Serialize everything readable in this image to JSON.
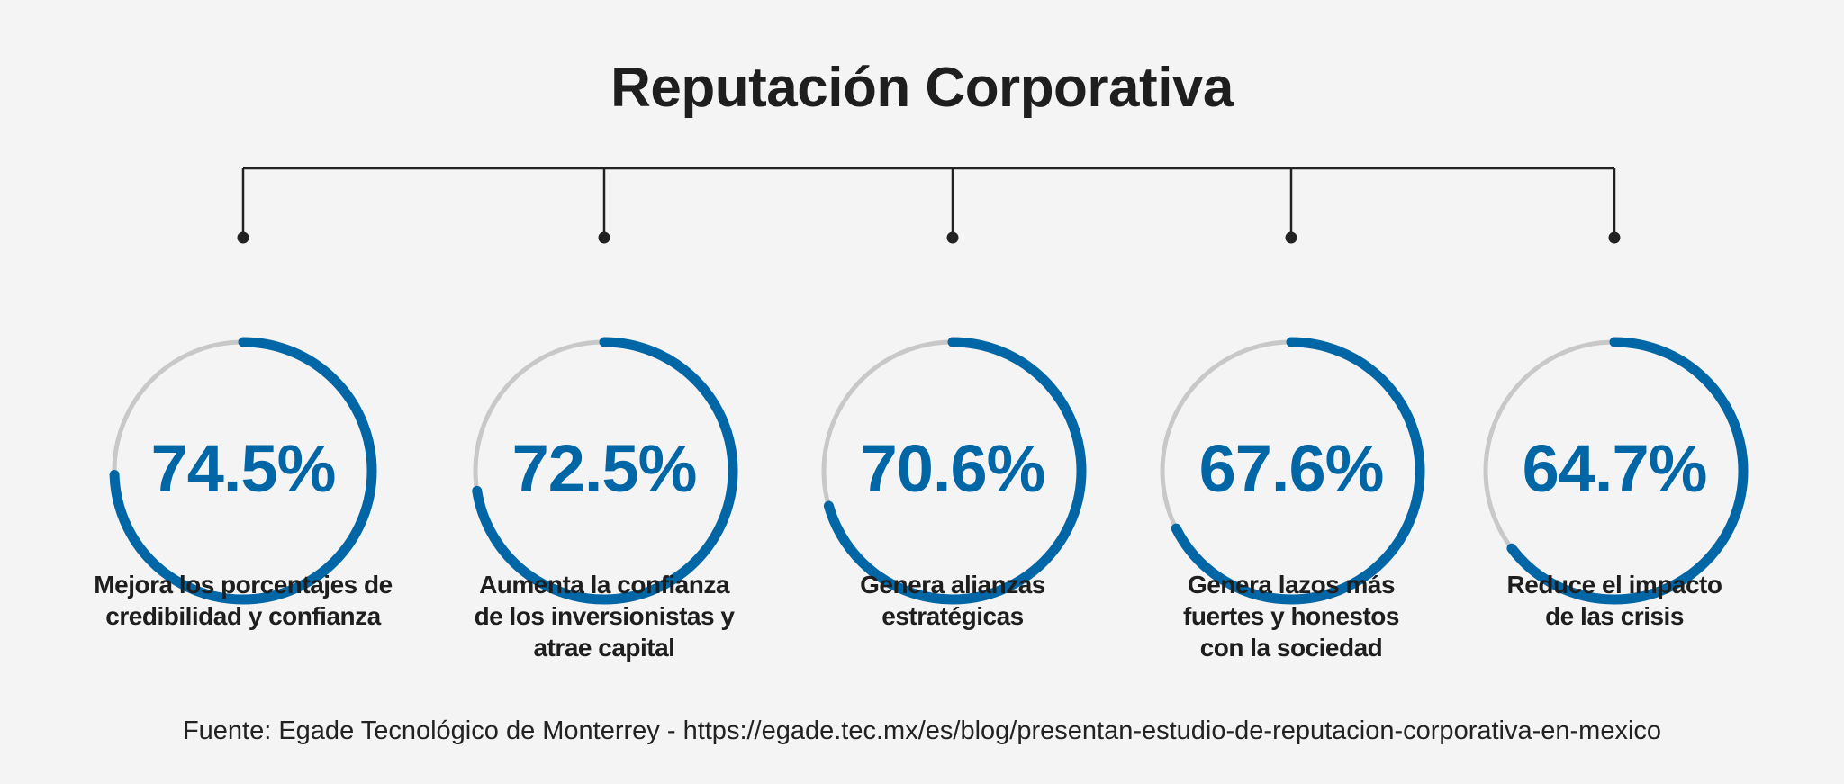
{
  "title": "Reputación Corporativa",
  "colors": {
    "accent": "#0066a6",
    "track": "#c8c8c8",
    "connector": "#222222",
    "background": "#f4f4f4"
  },
  "items": [
    {
      "value": 74.5,
      "value_label": "74.5%",
      "lines": [
        "Mejora los porcentajes de",
        "credibilidad y confianza"
      ]
    },
    {
      "value": 72.5,
      "value_label": "72.5%",
      "lines": [
        "Aumenta la confianza",
        "de los inversionistas y",
        "atrae capital"
      ]
    },
    {
      "value": 70.6,
      "value_label": "70.6%",
      "lines": [
        "Genera alianzas",
        "estratégicas"
      ]
    },
    {
      "value": 67.6,
      "value_label": "67.6%",
      "lines": [
        "Genera lazos más",
        "fuertes y honestos",
        "con la sociedad"
      ]
    },
    {
      "value": 64.7,
      "value_label": "64.7%",
      "lines": [
        "Reduce el impacto",
        "de las crisis"
      ]
    }
  ],
  "footer": "Fuente: Egade Tecnológico de Monterrey - https://egade.tec.mx/es/blog/presentan-estudio-de-reputacion-corporativa-en-mexico"
}
